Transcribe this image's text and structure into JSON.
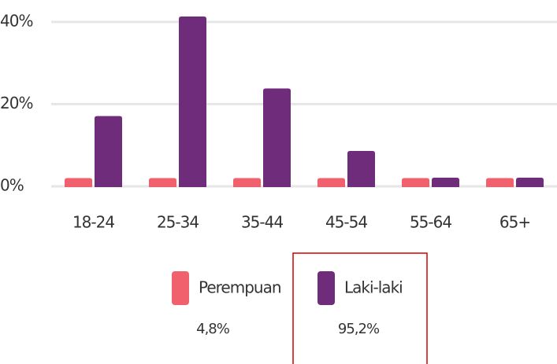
{
  "chart_data": {
    "type": "bar",
    "categories": [
      "18-24",
      "25-34",
      "35-44",
      "45-54",
      "55-64",
      "65+"
    ],
    "series": [
      {
        "name": "Perempuan",
        "color": "#f0616d",
        "values": [
          2,
          2,
          2,
          2,
          2,
          2
        ],
        "share": 4.8,
        "share_label": "4,8%"
      },
      {
        "name": "Laki-laki",
        "color": "#6f2c7b",
        "values": [
          17.1,
          41.3,
          23.8,
          8.6,
          2.1,
          2.1
        ],
        "share": 95.2,
        "share_label": "95,2%"
      }
    ],
    "ylim": [
      0,
      41.5
    ],
    "yticks": [
      {
        "value": 0,
        "label": "0%"
      },
      {
        "value": 20,
        "label": "20%"
      },
      {
        "value": 40,
        "label": "40%"
      }
    ],
    "grid": true
  }
}
